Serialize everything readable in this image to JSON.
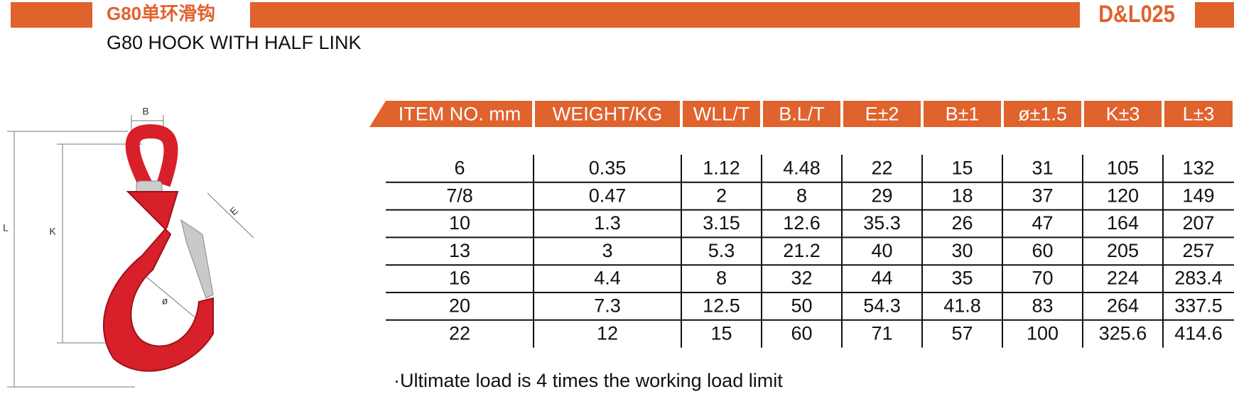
{
  "header": {
    "title_cn": "G80单环滑钩",
    "title_en": "G80 HOOK WITH HALF LINK",
    "code": "D&L025"
  },
  "figure": {
    "labels": [
      "B",
      "K",
      "L",
      "E",
      "ø"
    ]
  },
  "table": {
    "columns": [
      "ITEM NO. mm",
      "WEIGHT/KG",
      "WLL/T",
      "B.L/T",
      "E±2",
      "B±1",
      "ø±1.5",
      "K±3",
      "L±3"
    ],
    "rows": [
      [
        "6",
        "0.35",
        "1.12",
        "4.48",
        "22",
        "15",
        "31",
        "105",
        "132"
      ],
      [
        "7/8",
        "0.47",
        "2",
        "8",
        "29",
        "18",
        "37",
        "120",
        "149"
      ],
      [
        "10",
        "1.3",
        "3.15",
        "12.6",
        "35.3",
        "26",
        "47",
        "164",
        "207"
      ],
      [
        "13",
        "3",
        "5.3",
        "21.2",
        "40",
        "30",
        "60",
        "205",
        "257"
      ],
      [
        "16",
        "4.4",
        "8",
        "32",
        "44",
        "35",
        "70",
        "224",
        "283.4"
      ],
      [
        "20",
        "7.3",
        "12.5",
        "50",
        "54.3",
        "41.8",
        "83",
        "264",
        "337.5"
      ],
      [
        "22",
        "12",
        "15",
        "60",
        "71",
        "57",
        "100",
        "325.6",
        "414.6"
      ]
    ]
  },
  "note": "·Ultimate load is 4 times the working load limit"
}
